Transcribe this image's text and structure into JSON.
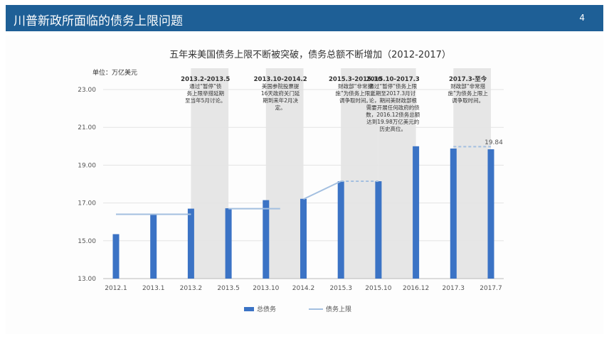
{
  "slide": {
    "title": "川普新政所面临的债务上限问题",
    "page_number": "4"
  },
  "colors": {
    "header_bg": "#1e5f96",
    "bar": "#3b73c5",
    "line": "#a3bfe0",
    "shade": "#e6e6e6",
    "axis_text": "#555555"
  },
  "chart_data": {
    "type": "bar",
    "title": "五年来美国债务上限不断被突破，债务总额不断增加（2012-2017）",
    "unit_label": "单位：万亿美元",
    "categories": [
      "2012.1",
      "2013.1",
      "2013.2",
      "2013.5",
      "2013.10",
      "2014.2",
      "2015.3",
      "2015.10",
      "2016.12",
      "2017.3",
      "2017.7"
    ],
    "series": [
      {
        "name": "总债务",
        "type": "bar",
        "values": [
          15.35,
          16.42,
          16.7,
          16.72,
          17.15,
          17.22,
          18.15,
          18.15,
          20.0,
          19.88,
          19.84
        ]
      },
      {
        "name": "债务上限",
        "type": "line",
        "values": [
          16.4,
          16.4,
          16.4,
          16.7,
          16.7,
          17.2,
          18.15,
          18.15,
          19.98,
          19.98,
          19.98
        ]
      }
    ],
    "ylim": [
      13.0,
      23.0
    ],
    "yticks": [
      "13.00",
      "15.00",
      "17.00",
      "19.00",
      "21.00",
      "23.00"
    ],
    "value_labels": [
      {
        "category_index": 10,
        "text": "19.84"
      }
    ],
    "legend": [
      "总债务",
      "债务上限"
    ],
    "annotations": [
      {
        "from": 2,
        "to": 3,
        "title": "2013.2-2013.5",
        "lines": [
          "通过“暂停”债",
          "务上限举措延期",
          "至当年5月讨论。"
        ]
      },
      {
        "from": 4,
        "to": 5,
        "title": "2013.10-2014.2",
        "lines": [
          "美国参院投票提",
          "16天政府关门延",
          "期到来年2月决",
          "定。"
        ]
      },
      {
        "from": 6,
        "to": 7,
        "title": "2015.3-2015.10",
        "lines": [
          "财政部“非常措",
          "施”为债务上限上",
          "调争取时间。"
        ]
      },
      {
        "from": 7,
        "to": 8,
        "title": "2015.10-2017.3",
        "lines": [
          "通过“暂停”债务上限",
          "延期至2017.3月讨",
          "论，期间美财政部根",
          "需要开展任何政府的债",
          "数，2016.12债务总额",
          "达到19.98万亿美元的",
          "历史高位。"
        ]
      },
      {
        "from": 9,
        "to": 10,
        "title": "2017.3-至今",
        "lines": [
          "财政部“非常措",
          "施”为债务上限上",
          "调争取时间。"
        ]
      }
    ]
  }
}
